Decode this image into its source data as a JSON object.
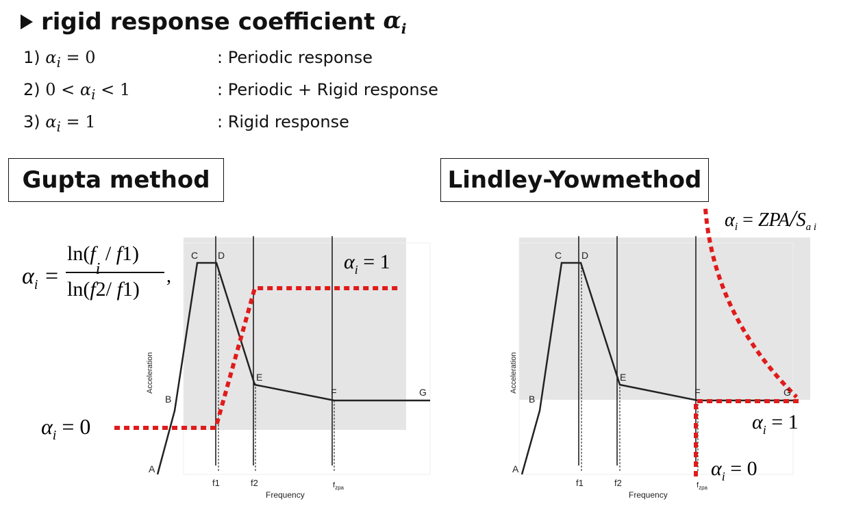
{
  "heading": {
    "text": "rigid response coefficient",
    "symbol": "α",
    "subscript": "i"
  },
  "cases": [
    {
      "number": "1)",
      "condition": "α_i = 0",
      "description": ": Periodic response"
    },
    {
      "number": "2)",
      "condition": "0 < α_i < 1",
      "description": ": Periodic + Rigid response"
    },
    {
      "number": "3)",
      "condition": "α_i = 1",
      "description": ": Rigid response"
    }
  ],
  "panels": {
    "gupta": {
      "title": "Gupta method",
      "formula": "α_i = ln(f_i / f1) / ln(f2 / f1),",
      "alpha_one": "α_i = 1",
      "alpha_zero": "α_i = 0"
    },
    "lindley": {
      "title": "Lindley-Yowmethod",
      "formula": "α_i = ZPA / S_ai",
      "alpha_one": "α_i = 1",
      "alpha_zero": "α_i = 0"
    }
  },
  "chart_labels": {
    "points": [
      "A",
      "B",
      "C",
      "D",
      "E",
      "F",
      "G"
    ],
    "x_ticks": [
      "f1",
      "f2",
      "fzpa"
    ],
    "xlabel": "Frequency",
    "ylabel": "Acceleration"
  },
  "colors": {
    "dashed_line": "#e01b1b",
    "shade": "#e5e5e5",
    "curve": "#333333"
  }
}
